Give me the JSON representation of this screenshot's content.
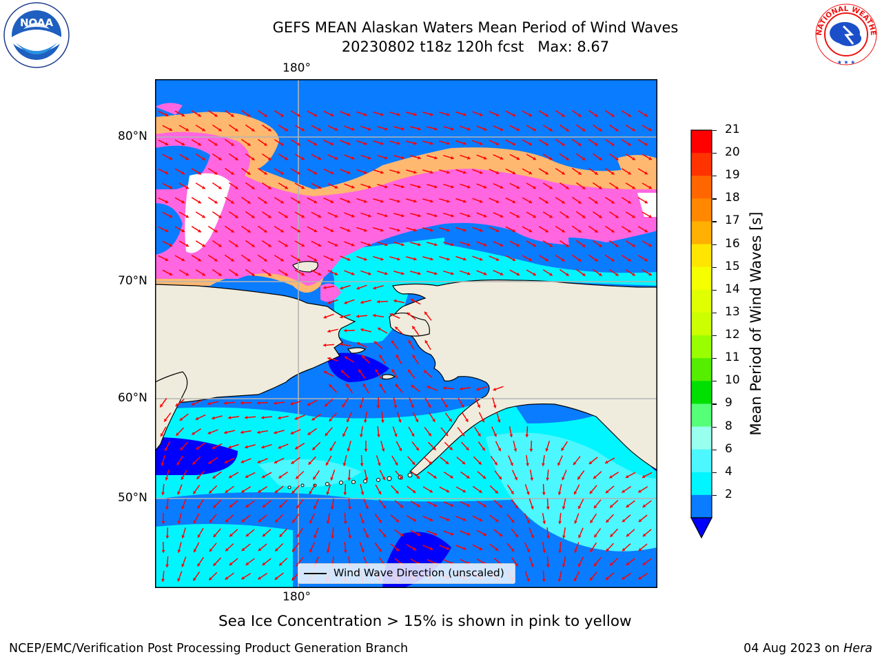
{
  "title_line1": "GEFS MEAN Alaskan Waters Mean Period of Wind Waves",
  "title_line2": "20230802 t18z 120h fcst   Max: 8.67",
  "map": {
    "lon_label_top": "180°",
    "lon_label_bottom": "180°",
    "lat_labels": [
      "80°N",
      "70°N",
      "60°N",
      "50°N"
    ],
    "legend_label": "Wind Wave Direction (unscaled)",
    "colors": {
      "land": "#efecdd",
      "ocean_low": "#0000ff",
      "ocean_mid": "#0a7cff",
      "ocean_cyan": "#00f5ff",
      "ocean_light": "#4cf7ff",
      "ice_pink": "#ff66e0",
      "ice_orange": "#ffa64d",
      "ice_light": "#ffb870",
      "arrows": "#ff0000",
      "grid": "#b4b4b4"
    }
  },
  "colorbar": {
    "title": "Mean Period of Wind Waves [s]",
    "ticks": [
      "21",
      "20",
      "19",
      "18",
      "17",
      "16",
      "15",
      "14",
      "13",
      "12",
      "11",
      "10",
      "9",
      "8",
      "6",
      "4",
      "2"
    ],
    "colors_top_to_bottom": [
      "#ff0000",
      "#ff3300",
      "#ff6600",
      "#ff8800",
      "#ffb000",
      "#ffe600",
      "#f5ff00",
      "#e0ff00",
      "#ccff00",
      "#99ff00",
      "#55ee00",
      "#00e000",
      "#55ff77",
      "#99ffee",
      "#4cf7ff",
      "#00f5ff",
      "#0a7cff"
    ],
    "extend_color": "#0000ff"
  },
  "caption": "Sea Ice Concentration > 15% is shown in pink to yellow",
  "footer_left": "NCEP/EMC/Verification Post Processing Product Generation Branch",
  "footer_right_date": "04 Aug 2023 on ",
  "footer_right_machine": "Hera",
  "logos": {
    "noaa": "NOAA",
    "nws": "NATIONAL WEATHER SERVICE"
  }
}
